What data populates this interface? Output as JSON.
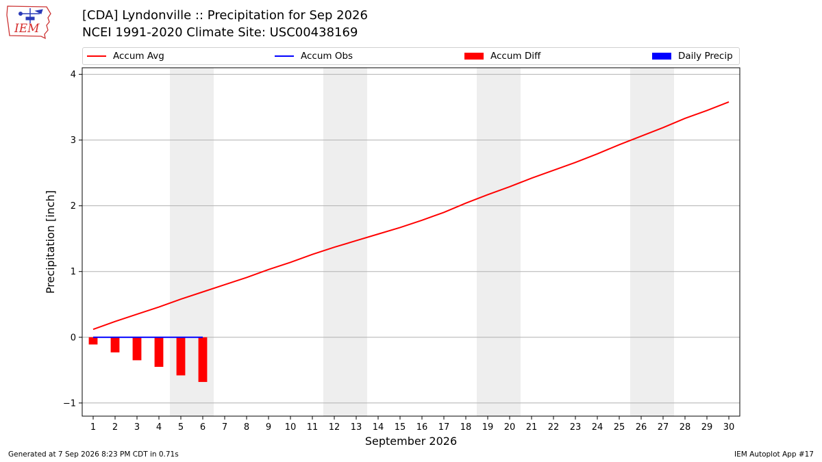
{
  "header": {
    "logo_text": "IEM",
    "title_line1": "[CDA] Lyndonville :: Precipitation for Sep 2026",
    "title_line2": "NCEI 1991-2020 Climate Site: USC00438169"
  },
  "legend": {
    "accum_avg": "Accum Avg",
    "accum_obs": "Accum Obs",
    "accum_diff": "Accum Diff",
    "daily_precip": "Daily Precip"
  },
  "footer": {
    "generated": "Generated at 7 Sep 2026 8:23 PM CDT in 0.71s",
    "app": "IEM Autoplot App #17"
  },
  "colors": {
    "accum_avg": "#ff0000",
    "accum_obs": "#0000ff",
    "accum_diff": "#ff0000",
    "daily_precip": "#0000ff",
    "weekend_shade": "#eeeeee",
    "grid": "#b0b0b0"
  },
  "chart_data": {
    "type": "line",
    "xlabel": "September 2026",
    "ylabel": "Precipitation [inch]",
    "xlim": [
      0.5,
      30.5
    ],
    "ylim": [
      -1.2,
      4.1
    ],
    "x_ticks": [
      1,
      2,
      3,
      4,
      5,
      6,
      7,
      8,
      9,
      10,
      11,
      12,
      13,
      14,
      15,
      16,
      17,
      18,
      19,
      20,
      21,
      22,
      23,
      24,
      25,
      26,
      27,
      28,
      29,
      30
    ],
    "y_ticks": [
      -1,
      0,
      1,
      2,
      3,
      4
    ],
    "y_grid": true,
    "weekend_spans": [
      [
        4.5,
        6.5
      ],
      [
        11.5,
        13.5
      ],
      [
        18.5,
        20.5
      ],
      [
        25.5,
        27.5
      ]
    ],
    "legend_placement": "top",
    "series": [
      {
        "name": "Accum Avg",
        "type": "line",
        "x": [
          1,
          2,
          3,
          4,
          5,
          6,
          7,
          8,
          9,
          10,
          11,
          12,
          13,
          14,
          15,
          16,
          17,
          18,
          19,
          20,
          21,
          22,
          23,
          24,
          25,
          26,
          27,
          28,
          29,
          30
        ],
        "values": [
          0.12,
          0.24,
          0.35,
          0.46,
          0.58,
          0.69,
          0.8,
          0.91,
          1.03,
          1.14,
          1.26,
          1.37,
          1.47,
          1.57,
          1.67,
          1.78,
          1.9,
          2.04,
          2.17,
          2.29,
          2.42,
          2.54,
          2.66,
          2.79,
          2.93,
          3.06,
          3.19,
          3.33,
          3.45,
          3.58
        ]
      },
      {
        "name": "Accum Obs",
        "type": "line",
        "x": [
          1,
          2,
          3,
          4,
          5,
          6
        ],
        "values": [
          0,
          0,
          0,
          0,
          0,
          0
        ]
      },
      {
        "name": "Accum Diff",
        "type": "bar",
        "x": [
          1,
          2,
          3,
          4,
          5,
          6
        ],
        "values": [
          -0.11,
          -0.23,
          -0.35,
          -0.45,
          -0.58,
          -0.68
        ]
      },
      {
        "name": "Daily Precip",
        "type": "bar",
        "x": [
          1,
          2,
          3,
          4,
          5,
          6
        ],
        "values": [
          0,
          0,
          0,
          0,
          0,
          0
        ]
      }
    ]
  }
}
